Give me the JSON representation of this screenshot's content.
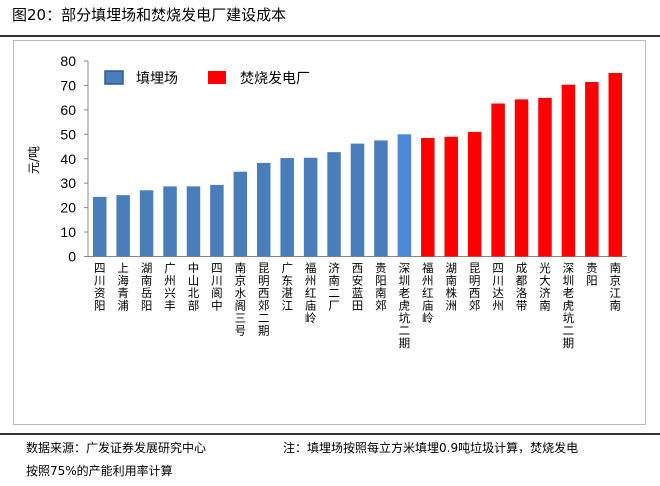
{
  "header": {
    "title": "图20：部分填埋场和焚烧发电厂建设成本"
  },
  "footer": {
    "source": "数据来源：广发证券发展研究中心",
    "note_line1": "注：填埋场按照每立方米填埋0.9吨垃圾计算，焚烧发电",
    "note_line2": "按照75%的产能利用率计算"
  },
  "chart_data": {
    "type": "bar",
    "title": "",
    "xlabel": "",
    "ylabel": "元/吨",
    "ylim": [
      0,
      80
    ],
    "yticks": [
      0,
      10,
      20,
      30,
      40,
      50,
      60,
      70,
      80
    ],
    "grid": false,
    "legend_position": "top-left",
    "colors": {
      "填埋场": "#4a7ebb",
      "焚烧发电厂": "#ff0000",
      "highlight": "#4a8ad8"
    },
    "categories": [
      "四川资阳",
      "上海青浦",
      "湖南岳阳",
      "广州兴丰",
      "中山北部",
      "四川阆中",
      "南京水阁三号",
      "昆明西郊二期",
      "广东湛江",
      "福州红庙岭",
      "济南二厂",
      "西安蓝田",
      "贵阳南郊",
      "深圳老虎坑二期",
      "福州红庙岭",
      "湖南株洲",
      "昆明西郊",
      "四川达州",
      "成都洛带",
      "光大济南",
      "深圳老虎坑二期",
      "贵阳",
      "南京江南"
    ],
    "series": [
      {
        "name": "填埋场",
        "values": [
          24.4,
          25.1,
          27.1,
          28.7,
          28.7,
          29.3,
          34.7,
          38.3,
          40.3,
          40.4,
          42.7,
          46.2,
          47.5,
          50.0,
          null,
          null,
          null,
          null,
          null,
          null,
          null,
          null,
          null
        ]
      },
      {
        "name": "焚烧发电厂",
        "values": [
          null,
          null,
          null,
          null,
          null,
          null,
          null,
          null,
          null,
          null,
          null,
          null,
          null,
          null,
          48.5,
          49.0,
          51.0,
          62.6,
          64.3,
          64.9,
          70.3,
          71.4,
          75.1
        ]
      }
    ]
  }
}
